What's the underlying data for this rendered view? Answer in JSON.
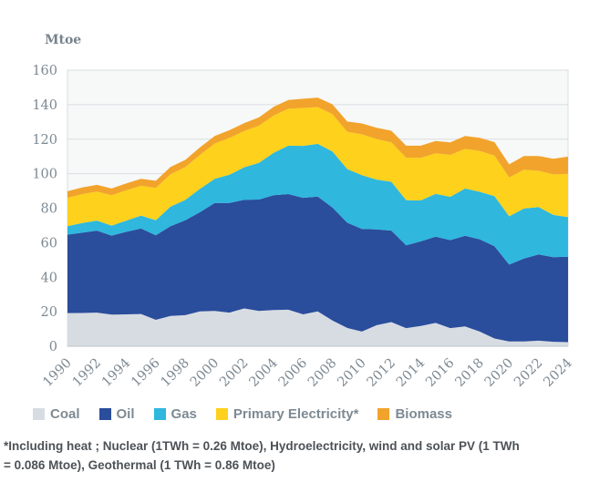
{
  "unit_label": "Mtoe",
  "footnote": {
    "line1": "*Including heat ; Nuclear (1TWh = 0.26 Mtoe), Hydroelectricity, wind and solar PV (1 TWh",
    "line2": "= 0.086 Mtoe), Geothermal (1 TWh = 0.86 Mtoe)"
  },
  "colors": {
    "plot_background": "#f7f8f8",
    "gridline": "#dadee1",
    "axis_line": "#c3cad0",
    "axis_text": "#7d8993",
    "legend_text": "#7e8a93",
    "footnote_text": "#4d5257"
  },
  "chart_data": {
    "type": "area",
    "stacked": true,
    "title": "",
    "ylabel": "Mtoe",
    "xlabel": "",
    "ylim": [
      0,
      160
    ],
    "y_ticks": [
      0,
      20,
      40,
      60,
      80,
      100,
      120,
      140,
      160
    ],
    "grid": true,
    "legend_position": "bottom",
    "x": [
      1990,
      1991,
      1992,
      1993,
      1994,
      1995,
      1996,
      1997,
      1998,
      1999,
      2000,
      2001,
      2002,
      2003,
      2004,
      2005,
      2006,
      2007,
      2008,
      2009,
      2010,
      2011,
      2012,
      2013,
      2014,
      2015,
      2016,
      2017,
      2018,
      2019,
      2020,
      2021,
      2022,
      2023,
      2024
    ],
    "x_tick_labels": [
      "1990",
      "1992",
      "1994",
      "1996",
      "1998",
      "2000",
      "2002",
      "2004",
      "2006",
      "2008",
      "2010",
      "2012",
      "2014",
      "2016",
      "2018",
      "2020",
      "2022",
      "2024"
    ],
    "series": [
      {
        "name": "Coal",
        "color": "#d7dce3",
        "values": [
          19.2,
          19.3,
          19.5,
          18.3,
          18.5,
          18.7,
          15.3,
          17.6,
          18.0,
          20.2,
          20.5,
          19.5,
          21.9,
          20.5,
          21.0,
          21.2,
          18.5,
          20.2,
          14.9,
          10.6,
          8.5,
          12.2,
          14.0,
          10.5,
          11.8,
          13.5,
          10.5,
          11.5,
          8.5,
          4.5,
          2.8,
          2.8,
          3.2,
          2.6,
          2.4
        ]
      },
      {
        "name": "Oil",
        "color": "#2a4d9c",
        "values": [
          45.5,
          46.5,
          47.5,
          45.8,
          47.8,
          49.5,
          49.0,
          52.0,
          55.0,
          57.5,
          62.5,
          63.5,
          63.0,
          64.5,
          66.5,
          67.0,
          67.5,
          66.5,
          65.5,
          61.0,
          59.5,
          55.5,
          53.0,
          48.0,
          49.0,
          50.0,
          51.0,
          52.5,
          53.5,
          53.5,
          44.5,
          48.0,
          50.0,
          49.0,
          49.5
        ]
      },
      {
        "name": "Gas",
        "color": "#2fb7de",
        "values": [
          4.9,
          5.6,
          5.8,
          5.8,
          6.5,
          7.5,
          8.7,
          11.3,
          11.8,
          13.5,
          14.0,
          16.4,
          18.8,
          21.3,
          24.6,
          28.0,
          30.1,
          30.6,
          32.5,
          31.1,
          31.1,
          28.9,
          28.3,
          26.2,
          23.7,
          24.8,
          25.1,
          27.4,
          27.5,
          29.0,
          28.0,
          29.0,
          27.5,
          24.5,
          23.0
        ]
      },
      {
        "name": "Primary Electricity*",
        "color": "#fdd11c",
        "values": [
          16.4,
          16.8,
          16.8,
          17.6,
          17.6,
          17.3,
          18.8,
          18.8,
          19.0,
          19.7,
          20.5,
          21.3,
          21.0,
          21.5,
          21.6,
          21.4,
          22.0,
          21.3,
          21.6,
          21.6,
          23.7,
          23.5,
          22.9,
          24.6,
          24.7,
          23.5,
          24.3,
          23.0,
          23.7,
          23.5,
          22.5,
          22.5,
          21.0,
          23.5,
          25.0
        ]
      },
      {
        "name": "Biomass",
        "color": "#f2a32b",
        "values": [
          3.8,
          3.8,
          3.9,
          3.9,
          4.0,
          4.0,
          4.1,
          4.2,
          4.2,
          4.3,
          4.4,
          4.5,
          4.6,
          4.8,
          5.0,
          5.1,
          5.3,
          5.5,
          5.7,
          5.9,
          6.3,
          6.5,
          6.7,
          6.9,
          7.0,
          7.1,
          7.2,
          7.4,
          7.6,
          7.8,
          7.6,
          7.9,
          8.5,
          9.0,
          10.0
        ]
      }
    ]
  }
}
